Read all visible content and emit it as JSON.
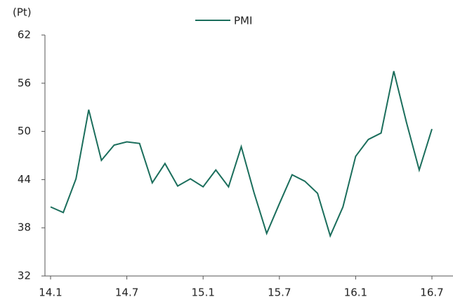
{
  "chart_data": {
    "type": "line",
    "y_unit_label": "(Pt)",
    "categories": [
      "14.1",
      null,
      null,
      null,
      null,
      null,
      "14.7",
      null,
      null,
      null,
      null,
      null,
      "15.1",
      null,
      null,
      null,
      null,
      null,
      "15.7",
      null,
      null,
      null,
      null,
      null,
      "16.1",
      null,
      null,
      null,
      null,
      null,
      "16.7"
    ],
    "series": [
      {
        "name": "PMI",
        "color": "#1b6e5c",
        "values": [
          40.6,
          39.9,
          44.1,
          52.7,
          46.4,
          48.3,
          48.7,
          48.5,
          43.6,
          46.0,
          43.2,
          44.1,
          43.1,
          45.2,
          43.1,
          48.1,
          42.4,
          37.3,
          41.0,
          44.6,
          43.8,
          42.3,
          37.0,
          40.6,
          46.9,
          49.0,
          49.8,
          57.5,
          51.1,
          45.2,
          50.3
        ]
      }
    ],
    "ylim": [
      32,
      62
    ],
    "yticks": [
      32,
      38,
      44,
      50,
      56,
      62
    ],
    "grid": false,
    "legend": "top"
  }
}
